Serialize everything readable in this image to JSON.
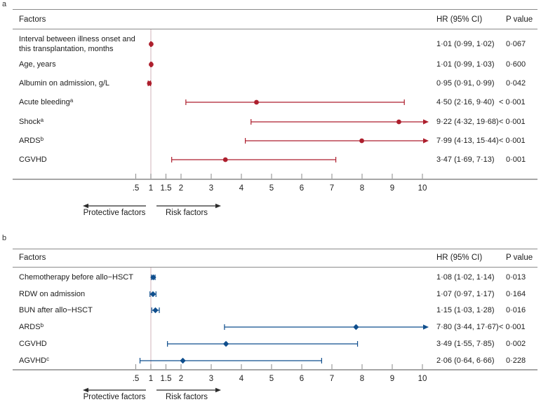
{
  "colors": {
    "panel_a_series": "#ad1f2d",
    "panel_b_series": "#0f4e8d",
    "reference_line": "#d8c0c6",
    "table_line": "#8a8a8a",
    "axis_line": "#a6a6a6",
    "text": "#1c1c1c",
    "arrow": "#2b2b2b"
  },
  "chart_data": [
    {
      "type": "forest",
      "panel_label": "a",
      "columns": [
        "Factors",
        "HR (95% CI)",
        "P value"
      ],
      "marker": "circle",
      "color": "#ad1f2d",
      "x_axis": {
        "scale": "linear",
        "ticks": [
          0.5,
          1,
          1.5,
          2,
          3,
          4,
          5,
          6,
          7,
          8,
          9,
          10
        ],
        "tick_labels": [
          ".5",
          "1",
          "1.5",
          "2",
          "3",
          "4",
          "5",
          "6",
          "7",
          "8",
          "9",
          "10"
        ],
        "reference_line": 1,
        "clip_max": 10
      },
      "direction_labels": {
        "left": "Protective factors",
        "right": "Risk factors"
      },
      "rows": [
        {
          "label": "Interval between illness onset and this transplantation, months",
          "label_lines": [
            "Interval between illness onset and",
            "this transplantation, months"
          ],
          "sup": "",
          "hr": 1.01,
          "ci_low": 0.99,
          "ci_high": 1.02,
          "hr_ci_text": "1·01 (0·99, 1·02)",
          "p_text": "0·067"
        },
        {
          "label": "Age, years",
          "sup": "",
          "hr": 1.01,
          "ci_low": 0.99,
          "ci_high": 1.03,
          "hr_ci_text": "1·01 (0·99, 1·03)",
          "p_text": "0·600"
        },
        {
          "label": "Albumin on admission, g/L",
          "sup": "",
          "hr": 0.95,
          "ci_low": 0.91,
          "ci_high": 0.99,
          "hr_ci_text": "0·95 (0·91, 0·99)",
          "p_text": "0·042"
        },
        {
          "label": "Acute bleeding",
          "sup": "a",
          "hr": 4.5,
          "ci_low": 2.16,
          "ci_high": 9.4,
          "hr_ci_text": "4·50 (2·16, 9·40)",
          "p_text": "< 0·001"
        },
        {
          "label": "Shock",
          "sup": "a",
          "hr": 9.22,
          "ci_low": 4.32,
          "ci_high": 19.68,
          "hr_ci_text": "9·22 (4·32, 19·68)",
          "p_text": "< 0·001"
        },
        {
          "label": "ARDS",
          "sup": "b",
          "hr": 7.99,
          "ci_low": 4.13,
          "ci_high": 15.44,
          "hr_ci_text": "7·99 (4·13, 15·44)",
          "p_text": "< 0·001"
        },
        {
          "label": "CGVHD",
          "sup": "",
          "hr": 3.47,
          "ci_low": 1.69,
          "ci_high": 7.13,
          "hr_ci_text": "3·47 (1·69, 7·13)",
          "p_text": "0·001"
        }
      ]
    },
    {
      "type": "forest",
      "panel_label": "b",
      "columns": [
        "Factors",
        "HR (95% CI)",
        "P value"
      ],
      "marker": "diamond",
      "color": "#0f4e8d",
      "x_axis": {
        "scale": "linear",
        "ticks": [
          0.5,
          1,
          1.5,
          2,
          3,
          4,
          5,
          6,
          7,
          8,
          9,
          10
        ],
        "tick_labels": [
          ".5",
          "1",
          "1.5",
          "2",
          "3",
          "4",
          "5",
          "6",
          "7",
          "8",
          "9",
          "10"
        ],
        "reference_line": 1,
        "clip_max": 10
      },
      "direction_labels": {
        "left": "Protective factors",
        "right": "Risk factors"
      },
      "rows": [
        {
          "label": "Chemotherapy before allo−HSCT",
          "sup": "",
          "hr": 1.08,
          "ci_low": 1.02,
          "ci_high": 1.14,
          "hr_ci_text": "1·08 (1·02, 1·14)",
          "p_text": "0·013"
        },
        {
          "label": "RDW on admission",
          "sup": "",
          "hr": 1.07,
          "ci_low": 0.97,
          "ci_high": 1.17,
          "hr_ci_text": "1·07 (0·97, 1·17)",
          "p_text": "0·164"
        },
        {
          "label": "BUN after allo−HSCT",
          "sup": "",
          "hr": 1.15,
          "ci_low": 1.03,
          "ci_high": 1.28,
          "hr_ci_text": "1·15 (1·03, 1·28)",
          "p_text": "0·016"
        },
        {
          "label": "ARDS",
          "sup": "b",
          "hr": 7.8,
          "ci_low": 3.44,
          "ci_high": 17.67,
          "hr_ci_text": "7·80 (3·44, 17·67)",
          "p_text": "< 0·001"
        },
        {
          "label": "CGVHD",
          "sup": "",
          "hr": 3.49,
          "ci_low": 1.55,
          "ci_high": 7.85,
          "hr_ci_text": "3·49 (1·55, 7·85)",
          "p_text": "0·002"
        },
        {
          "label": "AGVHD",
          "sup": "c",
          "hr": 2.06,
          "ci_low": 0.64,
          "ci_high": 6.66,
          "hr_ci_text": "2·06 (0·64, 6·66)",
          "p_text": "0·228"
        }
      ]
    }
  ]
}
